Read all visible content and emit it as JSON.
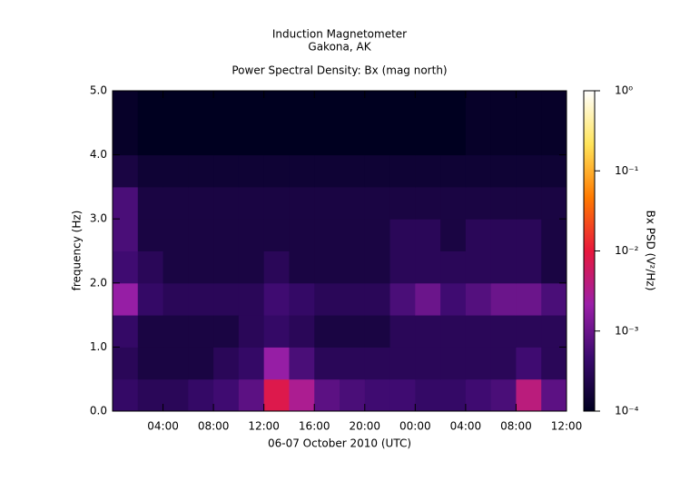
{
  "chart_data": {
    "type": "heatmap",
    "title": "Induction Magnetometer",
    "subtitle": "Gakona, AK",
    "plot_title": "Power Spectral Density: Bx (mag north)",
    "x_label": "06-07 October 2010 (UTC)",
    "y_label": "frequency (Hz)",
    "colorbar_label": "Bx PSD (V²/Hz)",
    "xlim": [
      0,
      36
    ],
    "xticks": [
      {
        "value": 4,
        "label": "04:00"
      },
      {
        "value": 8,
        "label": "08:00"
      },
      {
        "value": 12,
        "label": "12:00"
      },
      {
        "value": 16,
        "label": "16:00"
      },
      {
        "value": 20,
        "label": "20:00"
      },
      {
        "value": 24,
        "label": "00:00"
      },
      {
        "value": 28,
        "label": "04:00"
      },
      {
        "value": 32,
        "label": "08:00"
      },
      {
        "value": 36,
        "label": "12:00"
      }
    ],
    "ylim": [
      0,
      5
    ],
    "yticks": [
      {
        "value": 0,
        "label": "0.0"
      },
      {
        "value": 1,
        "label": "1.0"
      },
      {
        "value": 2,
        "label": "2.0"
      },
      {
        "value": 3,
        "label": "3.0"
      },
      {
        "value": 4,
        "label": "4.0"
      },
      {
        "value": 5,
        "label": "5.0"
      }
    ],
    "zlim": [
      0.0001,
      1
    ],
    "zscale": "log",
    "zticks": [
      {
        "value": 0.0001,
        "label": "10⁻⁴"
      },
      {
        "value": 0.001,
        "label": "10⁻³"
      },
      {
        "value": 0.01,
        "label": "10⁻²"
      },
      {
        "value": 0.1,
        "label": "10⁻¹"
      },
      {
        "value": 1,
        "label": "10⁰"
      }
    ],
    "colormap": [
      "#000020",
      "#3a0a6e",
      "#9b1fa8",
      "#e8183c",
      "#ff7a00",
      "#ffe45a",
      "#ffffff"
    ],
    "xbins": [
      0,
      2,
      4,
      6,
      8,
      10,
      12,
      14,
      16,
      18,
      20,
      22,
      24,
      26,
      28,
      30,
      32,
      34,
      36
    ],
    "ybins": [
      0,
      0.5,
      1,
      1.5,
      2,
      2.5,
      3,
      3.5,
      4,
      4.5,
      5
    ],
    "z": [
      [
        0.0004,
        0.0003,
        0.0003,
        0.0004,
        0.0005,
        0.0008,
        0.008,
        0.003,
        0.0008,
        0.0006,
        0.0005,
        0.0005,
        0.0004,
        0.0004,
        0.0005,
        0.0006,
        0.004,
        0.0008
      ],
      [
        0.0003,
        0.0002,
        0.0002,
        0.0002,
        0.0003,
        0.0004,
        0.002,
        0.0006,
        0.0003,
        0.0003,
        0.0003,
        0.0003,
        0.0003,
        0.0003,
        0.0003,
        0.0003,
        0.0005,
        0.0003
      ],
      [
        0.0004,
        0.0002,
        0.0002,
        0.0002,
        0.0002,
        0.0003,
        0.0004,
        0.0003,
        0.0002,
        0.0002,
        0.0002,
        0.0003,
        0.0003,
        0.0003,
        0.0003,
        0.0003,
        0.0003,
        0.0003
      ],
      [
        0.002,
        0.0004,
        0.0003,
        0.0003,
        0.0003,
        0.0003,
        0.0005,
        0.0004,
        0.0003,
        0.0003,
        0.0003,
        0.0006,
        0.001,
        0.0005,
        0.0007,
        0.001,
        0.001,
        0.0006
      ],
      [
        0.0005,
        0.0003,
        0.0002,
        0.0002,
        0.0002,
        0.0002,
        0.0003,
        0.0002,
        0.0002,
        0.0002,
        0.0002,
        0.0003,
        0.0003,
        0.0003,
        0.0003,
        0.0003,
        0.0003,
        0.0002
      ],
      [
        0.0006,
        0.0002,
        0.0002,
        0.0002,
        0.0002,
        0.0002,
        0.0002,
        0.0002,
        0.0002,
        0.0002,
        0.0002,
        0.0003,
        0.0003,
        0.0002,
        0.0003,
        0.0003,
        0.0003,
        0.0002
      ],
      [
        0.0006,
        0.0002,
        0.0002,
        0.0002,
        0.0002,
        0.0002,
        0.0002,
        0.0002,
        0.0002,
        0.0002,
        0.0002,
        0.0002,
        0.0002,
        0.0002,
        0.0002,
        0.0002,
        0.0002,
        0.0002
      ],
      [
        0.0002,
        0.00015,
        0.00015,
        0.00015,
        0.00015,
        0.00015,
        0.00015,
        0.00015,
        0.00015,
        0.00015,
        0.00015,
        0.00015,
        0.00015,
        0.00015,
        0.00015,
        0.00015,
        0.00015,
        0.00015
      ],
      [
        0.00012,
        0.0001,
        0.0001,
        0.0001,
        0.0001,
        0.0001,
        0.0001,
        0.0001,
        0.0001,
        0.0001,
        0.0001,
        0.0001,
        0.0001,
        0.0001,
        0.00012,
        0.00012,
        0.00012,
        0.00012
      ],
      [
        0.00012,
        0.0001,
        0.0001,
        0.0001,
        0.0001,
        0.0001,
        0.0001,
        0.0001,
        0.0001,
        0.0001,
        0.0001,
        0.0001,
        0.0001,
        0.0001,
        0.00012,
        0.00012,
        0.00012,
        0.00012
      ]
    ]
  }
}
